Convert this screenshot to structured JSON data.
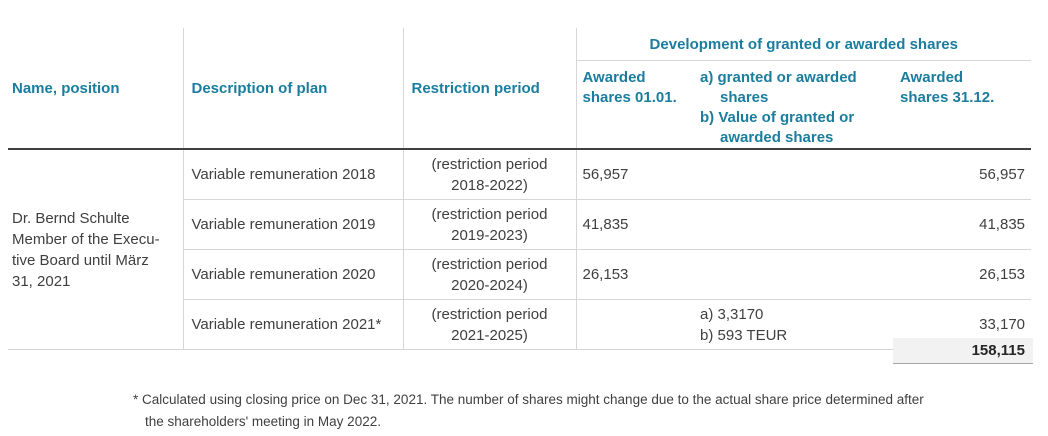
{
  "colors": {
    "accent_teal": "#1b7d9e",
    "body_text": "#3f3f3f",
    "light_border": "#d6d6d6",
    "dark_rule": "#404040",
    "total_background": "#f2f2f2"
  },
  "header": {
    "name_position": "Name, position",
    "description_of_plan": "Description of plan",
    "restriction_period": "Restriction period",
    "group": "Development of granted or awarded shares",
    "awarded_0101": "Awarded shares 01.01.",
    "granted_line_a": "a) granted or awarded shares",
    "granted_line_b": "b) Value of granted or awarded shares",
    "awarded_3112": "Awarded shares 31.12."
  },
  "person": {
    "line1": "Dr. Bernd Schulte",
    "line2": "Member of the Execu-",
    "line3": "tive Board until März",
    "line4": "31, 2021"
  },
  "rows": [
    {
      "plan": "Variable remuneration 2018",
      "restriction": "(restriction period 2018-2022)",
      "awarded_0101": "56,957",
      "granted_a": "",
      "granted_b": "",
      "awarded_3112": "56,957"
    },
    {
      "plan": "Variable remuneration 2019",
      "restriction": "(restriction period 2019-2023)",
      "awarded_0101": "41,835",
      "granted_a": "",
      "granted_b": "",
      "awarded_3112": "41,835"
    },
    {
      "plan": "Variable remuneration 2020",
      "restriction": "(restriction period 2020-2024)",
      "awarded_0101": "26,153",
      "granted_a": "",
      "granted_b": "",
      "awarded_3112": "26,153"
    },
    {
      "plan": "Variable remuneration 2021*",
      "restriction": "(restriction period 2021-2025)",
      "awarded_0101": "",
      "granted_a": "a) 3,3170",
      "granted_b": "b) 593 TEUR",
      "awarded_3112": "33,170"
    }
  ],
  "total": {
    "value": "158,115"
  },
  "footnote": {
    "marker": "*",
    "text": "Calculated using closing price on Dec 31, 2021. The number of shares might change due to the actual share price determined after the shareholders' meeting in May 2022."
  }
}
